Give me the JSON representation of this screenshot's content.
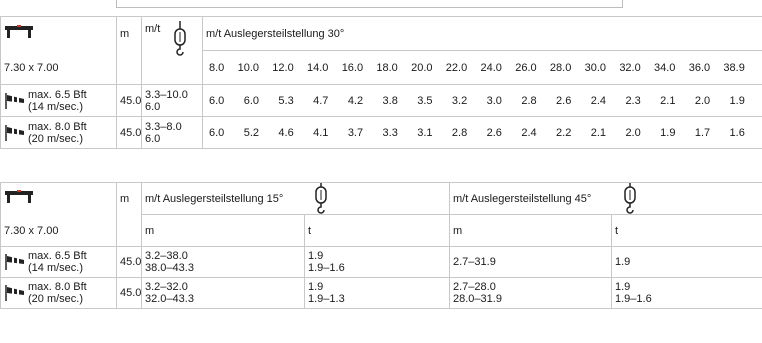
{
  "table1": {
    "size": "7.30 x 7.00",
    "col_m": "m",
    "col_mt": "m/t",
    "header": "m/t Auslegersteilstellung 30°",
    "radii": [
      "8.0",
      "10.0",
      "12.0",
      "14.0",
      "16.0",
      "18.0",
      "20.0",
      "22.0",
      "24.0",
      "26.0",
      "28.0",
      "30.0",
      "32.0",
      "34.0",
      "36.0",
      "38.9"
    ],
    "rows": [
      {
        "wind_a": "max. 6.5 Bft",
        "wind_b": "(14 m/sec.)",
        "m": "45.0",
        "range_a": "3.3–10.0",
        "range_b": "6.0",
        "values": [
          "6.0",
          "6.0",
          "5.3",
          "4.7",
          "4.2",
          "3.8",
          "3.5",
          "3.2",
          "3.0",
          "2.8",
          "2.6",
          "2.4",
          "2.3",
          "2.1",
          "2.0",
          "1.9"
        ]
      },
      {
        "wind_a": "max. 8.0 Bft",
        "wind_b": "(20 m/sec.)",
        "m": "45.0",
        "range_a": "3.3–8.0",
        "range_b": "6.0",
        "values": [
          "6.0",
          "5.2",
          "4.6",
          "4.1",
          "3.7",
          "3.3",
          "3.1",
          "2.8",
          "2.6",
          "2.4",
          "2.2",
          "2.1",
          "2.0",
          "1.9",
          "1.7",
          "1.6"
        ]
      }
    ]
  },
  "table2": {
    "size": "7.30 x 7.00",
    "col_m": "m",
    "header_15": "m/t Auslegersteilstellung 15°",
    "header_45": "m/t Auslegersteilstellung 45°",
    "sub_m": "m",
    "sub_t": "t",
    "rows": [
      {
        "wind_a": "max. 6.5 Bft",
        "wind_b": "(14 m/sec.)",
        "m": "45.0",
        "m15_a": "3.2–38.0",
        "m15_b": "38.0–43.3",
        "t15_a": "1.9",
        "t15_b": "1.9–1.6",
        "m45_a": "2.7–31.9",
        "m45_b": "",
        "t45_a": "1.9",
        "t45_b": ""
      },
      {
        "wind_a": "max. 8.0 Bft",
        "wind_b": "(20 m/sec.)",
        "m": "45.0",
        "m15_a": "3.2–32.0",
        "m15_b": "32.0–43.3",
        "t15_a": "1.9",
        "t15_b": "1.9–1.3",
        "m45_a": "2.7–28.0",
        "m45_b": "28.0–31.9",
        "t45_a": "1.9",
        "t45_b": "1.9–1.6"
      }
    ]
  },
  "icons": {
    "crane": "crane-base-icon",
    "hook": "crane-hook-icon",
    "wind": "wind-sock-icon"
  }
}
